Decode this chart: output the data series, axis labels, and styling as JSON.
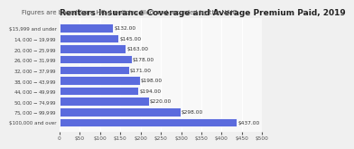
{
  "title": "Renters Insurance Coverage and Average Premium Paid, 2019",
  "subtitle": "Figures are based from HO-4 policies filed and recorded by the NAIC",
  "categories": [
    "$15,999 and under",
    "$14,000-$19,999",
    "$20,000-$25,999",
    "$26,000-$31,999",
    "$32,000-$37,999",
    "$38,000-$43,999",
    "$44,000-$49,999",
    "$50,000-$74,999",
    "$75,000-$99,999",
    "$100,000 and over"
  ],
  "values": [
    132,
    145,
    163,
    178,
    171,
    198,
    194,
    220,
    298,
    437
  ],
  "labels": [
    "$132.00",
    "$145.00",
    "$163.00",
    "$178.00",
    "$171.00",
    "$198.00",
    "$194.00",
    "$220.00",
    "$298.00",
    "$437.00"
  ],
  "bar_color": "#5B6BDD",
  "background_color": "#f0f0f0",
  "plot_bg_color": "#f8f8f8",
  "grid_color": "#ffffff",
  "xlim": [
    0,
    500
  ],
  "xticks": [
    0,
    50,
    100,
    150,
    200,
    250,
    300,
    350,
    400,
    450,
    500
  ],
  "title_fontsize": 6.5,
  "subtitle_fontsize": 5.0,
  "label_fontsize": 4.2,
  "tick_fontsize": 4.2,
  "ylabel_fontsize": 4.0
}
